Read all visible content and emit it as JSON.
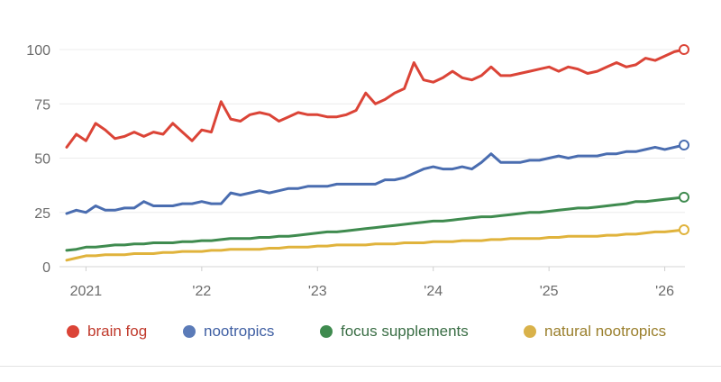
{
  "chart_data": {
    "type": "line",
    "title": "",
    "xlabel": "",
    "ylabel": "",
    "ylim": [
      0,
      100
    ],
    "yticks": [
      "0",
      "25",
      "50",
      "75",
      "100"
    ],
    "xticks": [
      {
        "label": "2021",
        "date": "2021-01"
      },
      {
        "label": "'22",
        "date": "2022-01"
      },
      {
        "label": "'23",
        "date": "2023-01"
      },
      {
        "label": "'24",
        "date": "2024-01"
      },
      {
        "label": "'25",
        "date": "2025-01"
      },
      {
        "label": "'26",
        "date": "2026-01"
      }
    ],
    "x_start": "2020-11",
    "x_end": "2026-03",
    "x_step": "month",
    "grid": true,
    "legend_position": "bottom",
    "series": [
      {
        "name": "brain fog",
        "color": "#db4437",
        "text_color": "#c0392b",
        "values": [
          55,
          61,
          58,
          66,
          63,
          59,
          60,
          62,
          60,
          62,
          61,
          66,
          62,
          58,
          63,
          62,
          76,
          68,
          67,
          70,
          71,
          70,
          67,
          69,
          71,
          70,
          70,
          69,
          69,
          70,
          72,
          80,
          75,
          77,
          80,
          82,
          94,
          86,
          85,
          87,
          90,
          87,
          86,
          88,
          92,
          88,
          88,
          89,
          90,
          91,
          92,
          90,
          92,
          91,
          89,
          90,
          92,
          94,
          92,
          93,
          96,
          95,
          97,
          99,
          100
        ]
      },
      {
        "name": "nootropics",
        "color": "#4a6db0",
        "text_color": "#3f5fa3",
        "values": [
          24.5,
          26,
          25,
          28,
          26,
          26,
          27,
          27,
          30,
          28,
          28,
          28,
          29,
          29,
          30,
          29,
          29,
          34,
          33,
          34,
          35,
          34,
          35,
          36,
          36,
          37,
          37,
          37,
          38,
          38,
          38,
          38,
          38,
          40,
          40,
          41,
          43,
          45,
          46,
          45,
          45,
          46,
          45,
          48,
          52,
          48,
          48,
          48,
          49,
          49,
          50,
          51,
          50,
          51,
          51,
          51,
          52,
          52,
          53,
          53,
          54,
          55,
          54,
          55,
          56
        ]
      },
      {
        "name": "focus supplements",
        "color": "#3f8b4f",
        "text_color": "#3a6e45",
        "values": [
          7.5,
          8,
          9,
          9,
          9.5,
          10,
          10,
          10.5,
          10.5,
          11,
          11,
          11,
          11.5,
          11.5,
          12,
          12,
          12.5,
          13,
          13,
          13,
          13.5,
          13.5,
          14,
          14,
          14.5,
          15,
          15.5,
          16,
          16,
          16.5,
          17,
          17.5,
          18,
          18.5,
          19,
          19.5,
          20,
          20.5,
          21,
          21,
          21.5,
          22,
          22.5,
          23,
          23,
          23.5,
          24,
          24.5,
          25,
          25,
          25.5,
          26,
          26.5,
          27,
          27,
          27.5,
          28,
          28.5,
          29,
          30,
          30,
          30.5,
          31,
          31.5,
          32
        ]
      },
      {
        "name": "natural nootropics",
        "color": "#e0b33c",
        "text_color": "#9a7f2c",
        "values": [
          3,
          4,
          5,
          5,
          5.5,
          5.5,
          5.5,
          6,
          6,
          6,
          6.5,
          6.5,
          7,
          7,
          7,
          7.5,
          7.5,
          8,
          8,
          8,
          8,
          8.5,
          8.5,
          9,
          9,
          9,
          9.5,
          9.5,
          10,
          10,
          10,
          10,
          10.5,
          10.5,
          10.5,
          11,
          11,
          11,
          11.5,
          11.5,
          11.5,
          12,
          12,
          12,
          12.5,
          12.5,
          13,
          13,
          13,
          13,
          13.5,
          13.5,
          14,
          14,
          14,
          14,
          14.5,
          14.5,
          15,
          15,
          15.5,
          16,
          16,
          16.5,
          17
        ]
      }
    ]
  }
}
